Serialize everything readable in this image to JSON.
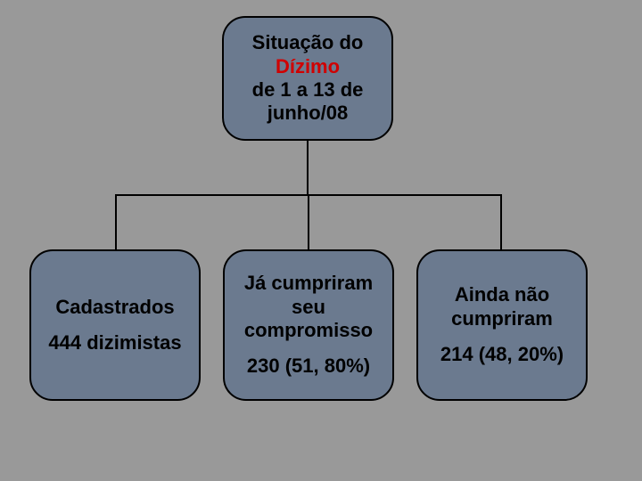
{
  "diagram": {
    "type": "tree",
    "background_color": "#999999",
    "node_fill": "#6b7a8f",
    "node_border_color": "#000000",
    "node_border_width": 2,
    "node_border_radius": 26,
    "connector_color": "#000000",
    "font_family": "Arial",
    "font_weight": "bold",
    "root": {
      "line1": "Situação do",
      "highlight": "Dízimo",
      "highlight_color": "#d00000",
      "line3": "de 1 a 13 de",
      "line4": "junho/08",
      "fontsize": 22
    },
    "children": [
      {
        "line1": "Cadastrados",
        "line2": "444 dizimistas",
        "fontsize": 22
      },
      {
        "line1": "Já cumpriram",
        "line2": "seu",
        "line3": "compromisso",
        "value": "230 (51, 80%)",
        "fontsize": 22
      },
      {
        "line1": "Ainda não",
        "line2": "cumpriram",
        "value": "214 (48, 20%)",
        "fontsize": 22
      }
    ]
  }
}
